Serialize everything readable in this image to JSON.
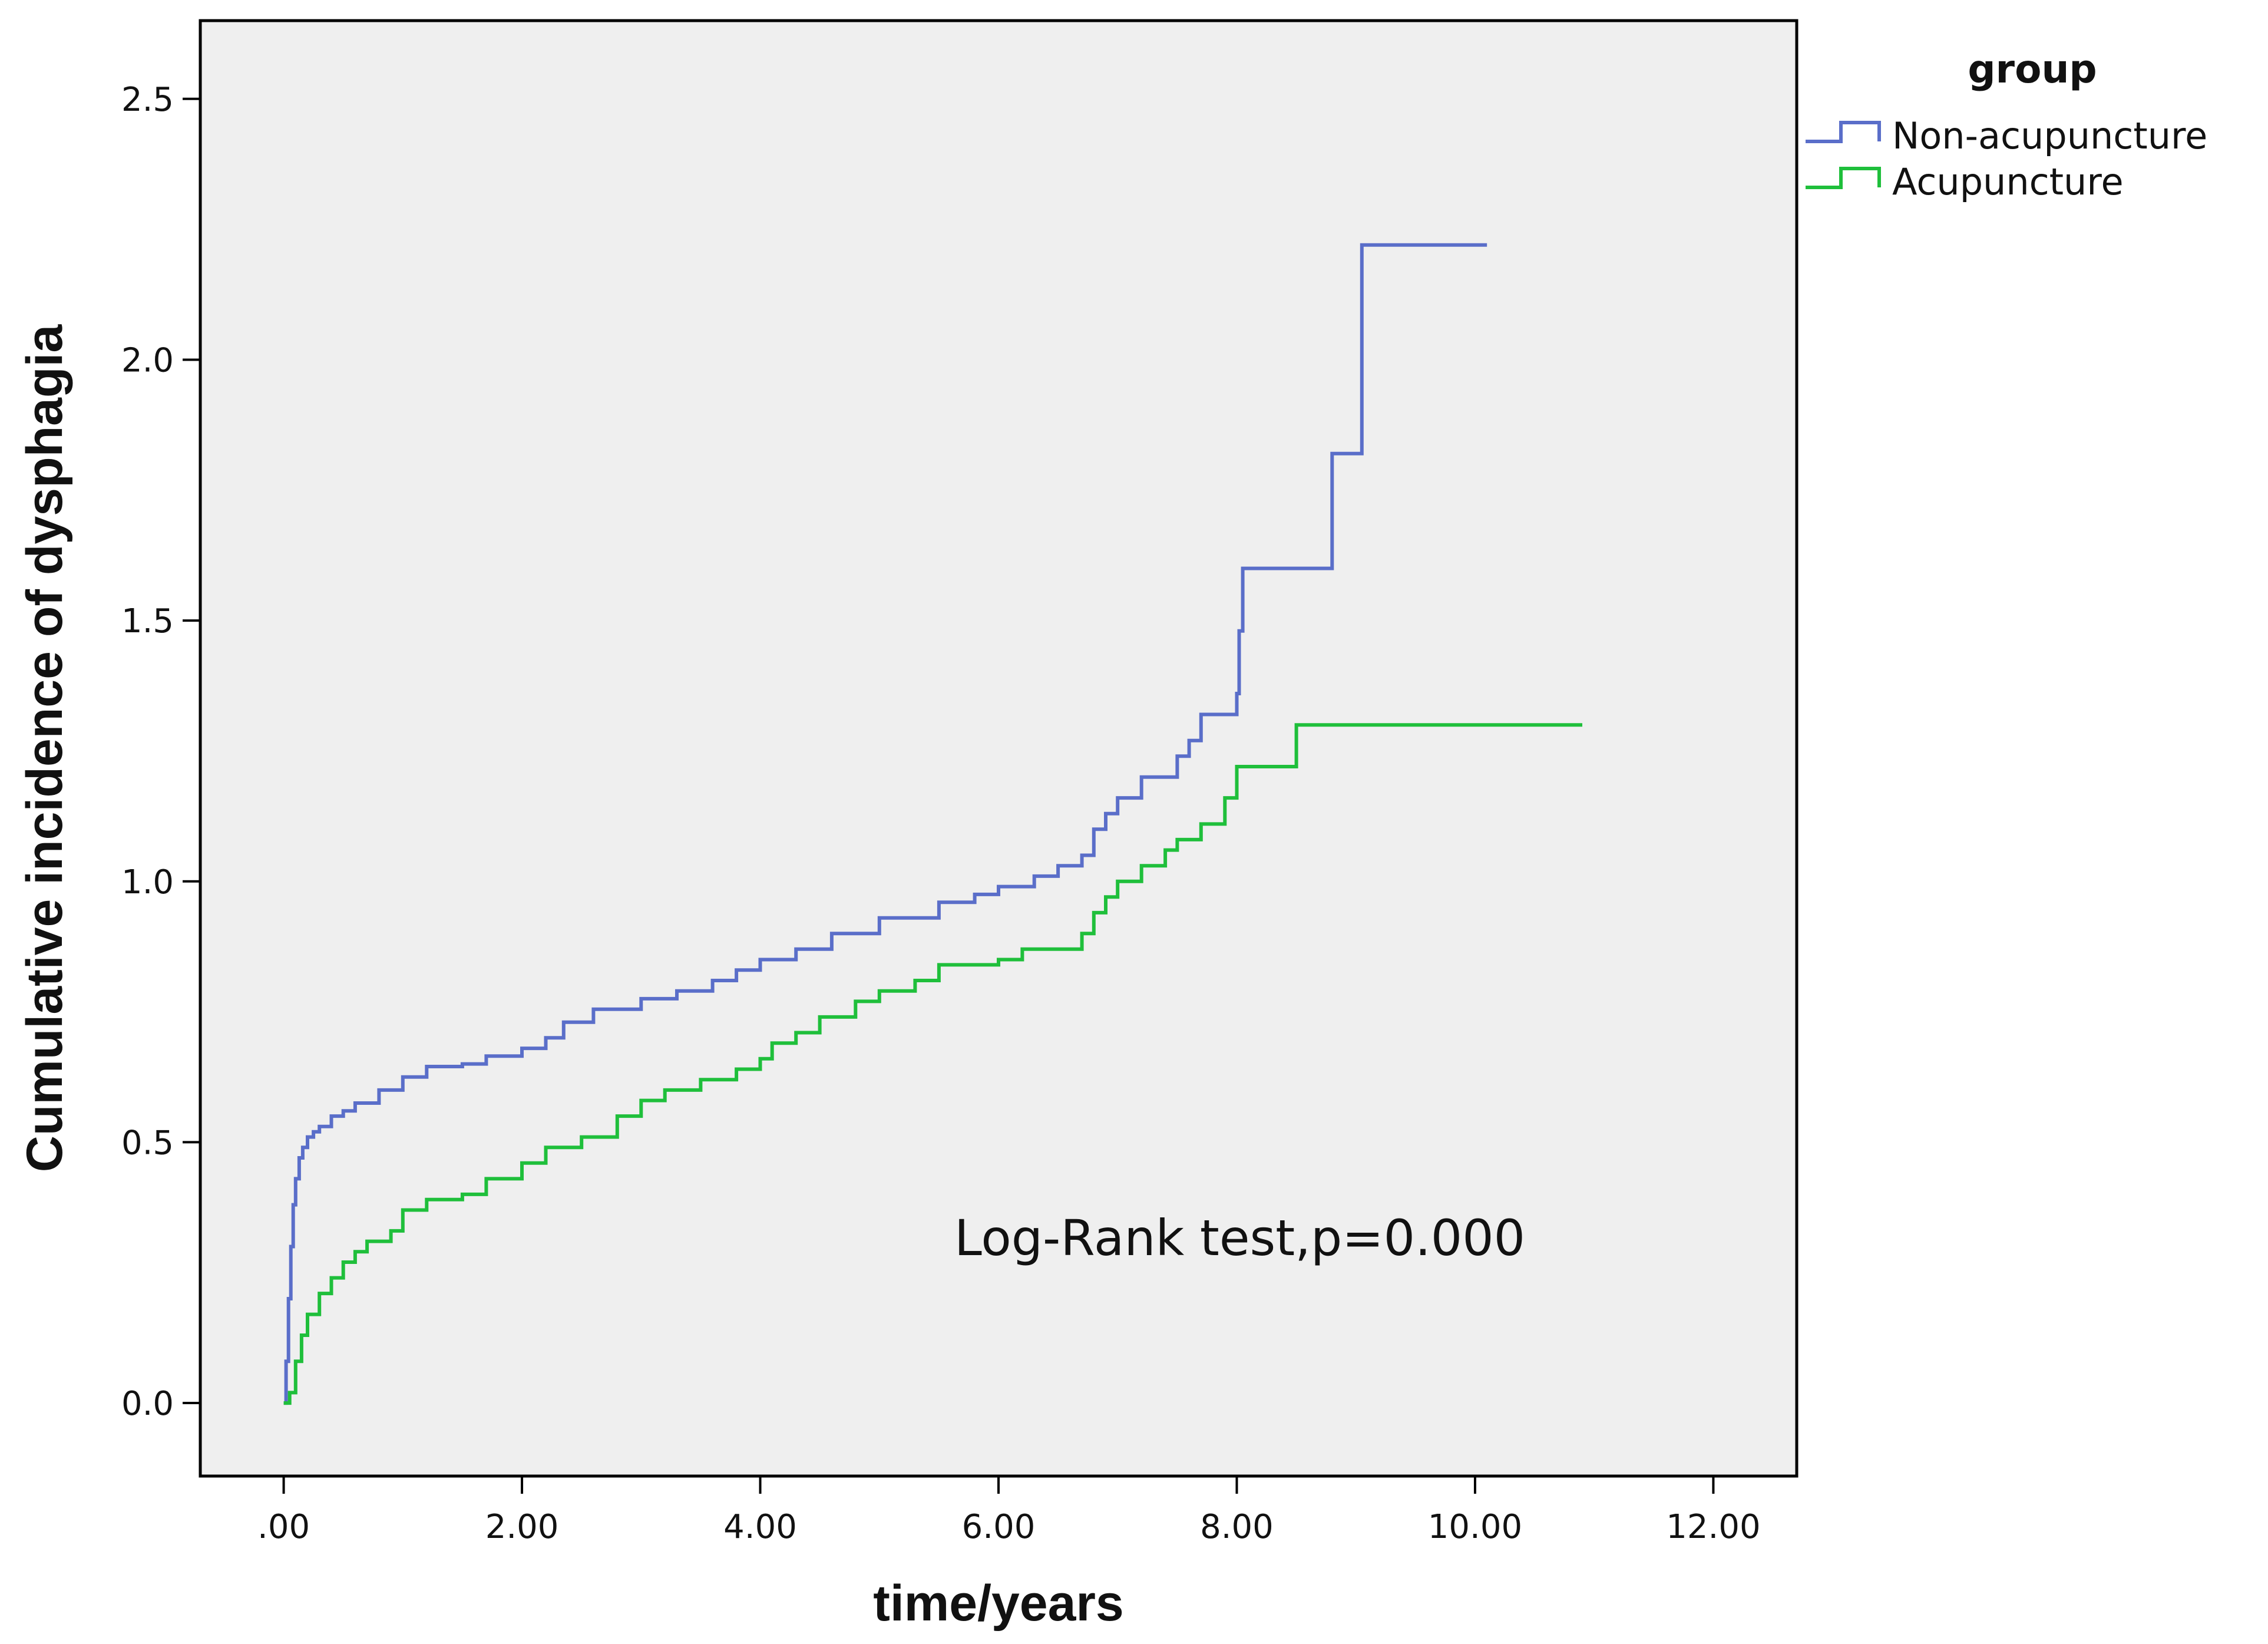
{
  "chart_data": {
    "type": "line",
    "step": true,
    "xlabel": "time/years",
    "ylabel": "Cumulative incidence of dysphagia",
    "xlim": [
      -0.7,
      12.7
    ],
    "ylim": [
      -0.14,
      2.65
    ],
    "x_ticks": [
      0,
      2,
      4,
      6,
      8,
      10,
      12
    ],
    "x_tick_labels": [
      ".00",
      "2.00",
      "4.00",
      "6.00",
      "8.00",
      "10.00",
      "12.00"
    ],
    "y_ticks": [
      0,
      0.5,
      1.0,
      1.5,
      2.0,
      2.5
    ],
    "y_tick_labels": [
      "0.0",
      "0.5",
      "1.0",
      "1.5",
      "2.0",
      "2.5"
    ],
    "grid": false,
    "background": "#efefef",
    "legend": {
      "title": "group",
      "placement": "outside-top-right"
    },
    "annotation": "Log-Rank test,p=0.000",
    "series": [
      {
        "name": "Non-acupuncture",
        "color": "#5a6ec9",
        "x": [
          0.0,
          0.02,
          0.04,
          0.06,
          0.08,
          0.1,
          0.13,
          0.16,
          0.2,
          0.25,
          0.3,
          0.4,
          0.5,
          0.6,
          0.8,
          1.0,
          1.2,
          1.5,
          1.7,
          2.0,
          2.2,
          2.35,
          2.6,
          3.0,
          3.3,
          3.6,
          3.8,
          4.0,
          4.3,
          4.6,
          5.0,
          5.5,
          5.8,
          6.0,
          6.3,
          6.5,
          6.7,
          6.8,
          6.9,
          7.0,
          7.2,
          7.5,
          7.6,
          7.7,
          8.0,
          8.02,
          8.05,
          8.8,
          9.05,
          10.1
        ],
        "y": [
          0.0,
          0.08,
          0.2,
          0.3,
          0.38,
          0.43,
          0.47,
          0.49,
          0.51,
          0.52,
          0.53,
          0.55,
          0.56,
          0.575,
          0.6,
          0.625,
          0.645,
          0.65,
          0.665,
          0.68,
          0.7,
          0.73,
          0.755,
          0.775,
          0.79,
          0.81,
          0.83,
          0.85,
          0.87,
          0.9,
          0.93,
          0.96,
          0.975,
          0.99,
          1.01,
          1.03,
          1.05,
          1.1,
          1.13,
          1.16,
          1.2,
          1.24,
          1.27,
          1.32,
          1.36,
          1.48,
          1.6,
          1.82,
          2.22,
          2.22
        ]
      },
      {
        "name": "Acupuncture",
        "color": "#1fbf3b",
        "x": [
          0.0,
          0.05,
          0.1,
          0.15,
          0.2,
          0.3,
          0.4,
          0.5,
          0.6,
          0.7,
          0.9,
          1.0,
          1.2,
          1.5,
          1.7,
          2.0,
          2.2,
          2.5,
          2.8,
          3.0,
          3.2,
          3.5,
          3.8,
          4.0,
          4.1,
          4.3,
          4.5,
          4.8,
          5.0,
          5.3,
          5.5,
          5.8,
          6.0,
          6.2,
          6.5,
          6.7,
          6.8,
          6.9,
          7.0,
          7.2,
          7.4,
          7.5,
          7.7,
          7.9,
          8.0,
          8.5,
          10.9
        ],
        "y": [
          0.0,
          0.02,
          0.08,
          0.13,
          0.17,
          0.21,
          0.24,
          0.27,
          0.29,
          0.31,
          0.33,
          0.37,
          0.39,
          0.4,
          0.43,
          0.46,
          0.49,
          0.51,
          0.55,
          0.58,
          0.6,
          0.62,
          0.64,
          0.66,
          0.69,
          0.71,
          0.74,
          0.77,
          0.79,
          0.81,
          0.84,
          0.84,
          0.85,
          0.87,
          0.87,
          0.9,
          0.94,
          0.97,
          1.0,
          1.03,
          1.06,
          1.08,
          1.11,
          1.16,
          1.22,
          1.3,
          1.3
        ]
      }
    ]
  }
}
